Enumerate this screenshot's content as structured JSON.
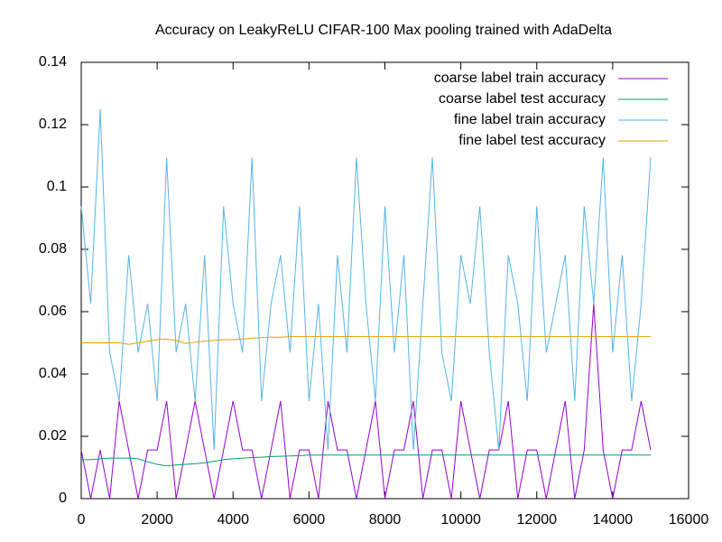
{
  "chart_data": {
    "type": "line",
    "title": "Accuracy on LeakyReLU CIFAR-100 Max pooling trained with AdaDelta",
    "x": [
      0,
      250,
      500,
      750,
      1000,
      1250,
      1500,
      1750,
      2000,
      2250,
      2500,
      2750,
      3000,
      3250,
      3500,
      3750,
      4000,
      4250,
      4500,
      4750,
      5000,
      5250,
      5500,
      5750,
      6000,
      6250,
      6500,
      6750,
      7000,
      7250,
      7500,
      7750,
      8000,
      8250,
      8500,
      8750,
      9000,
      9250,
      9500,
      9750,
      10000,
      10250,
      10500,
      10750,
      11000,
      11250,
      11500,
      11750,
      12000,
      12250,
      12500,
      12750,
      13000,
      13250,
      13500,
      13750,
      14000,
      14250,
      14500,
      14750,
      15000
    ],
    "series": [
      {
        "name": "coarse label train accuracy",
        "color": "#9400d3",
        "values": [
          0.0156,
          0,
          0.0156,
          0,
          0.0313,
          0.0156,
          0,
          0.0156,
          0.0156,
          0.0313,
          0,
          0.0156,
          0.0313,
          0.0156,
          0,
          0.0156,
          0.0313,
          0.0156,
          0.0156,
          0,
          0.0156,
          0.0313,
          0,
          0.0156,
          0.0156,
          0,
          0.0313,
          0.0156,
          0.0156,
          0,
          0.0156,
          0.0313,
          0,
          0.0156,
          0.0156,
          0.0313,
          0,
          0.0156,
          0.0156,
          0,
          0.0313,
          0.0156,
          0,
          0.0156,
          0.0156,
          0.0313,
          0,
          0.0156,
          0.0156,
          0,
          0.0156,
          0.0313,
          0,
          0.0156,
          0.0625,
          0.0156,
          0,
          0.0156,
          0.0156,
          0.0313,
          0.0156
        ]
      },
      {
        "name": "coarse label test accuracy",
        "color": "#009e73",
        "values": [
          0.0125,
          0.0125,
          0.0128,
          0.013,
          0.013,
          0.013,
          0.0128,
          0.0118,
          0.011,
          0.0105,
          0.0108,
          0.011,
          0.0112,
          0.0115,
          0.012,
          0.0125,
          0.0128,
          0.013,
          0.0132,
          0.0133,
          0.0135,
          0.0136,
          0.0137,
          0.0138,
          0.014,
          0.014,
          0.014,
          0.014,
          0.014,
          0.014,
          0.014,
          0.014,
          0.014,
          0.014,
          0.014,
          0.014,
          0.014,
          0.014,
          0.014,
          0.014,
          0.014,
          0.014,
          0.014,
          0.014,
          0.014,
          0.014,
          0.014,
          0.014,
          0.014,
          0.014,
          0.014,
          0.014,
          0.014,
          0.014,
          0.014,
          0.014,
          0.014,
          0.014,
          0.014,
          0.014,
          0.014
        ]
      },
      {
        "name": "fine label train accuracy",
        "color": "#56b4e9",
        "values": [
          0.0938,
          0.0625,
          0.125,
          0.0469,
          0.0313,
          0.0781,
          0.0469,
          0.0625,
          0.0313,
          0.1094,
          0.0469,
          0.0625,
          0.0313,
          0.0781,
          0.0156,
          0.0938,
          0.0625,
          0.0469,
          0.1094,
          0.0313,
          0.0625,
          0.0781,
          0.0469,
          0.0938,
          0.0313,
          0.0625,
          0.0156,
          0.0781,
          0.0469,
          0.1094,
          0.0625,
          0.0313,
          0.0938,
          0.0469,
          0.0781,
          0.0156,
          0.0625,
          0.1094,
          0.0469,
          0.0313,
          0.0781,
          0.0625,
          0.0938,
          0.0469,
          0.0156,
          0.0781,
          0.0625,
          0.0313,
          0.0938,
          0.0469,
          0.0625,
          0.0781,
          0.0313,
          0.0938,
          0.0625,
          0.1094,
          0.0469,
          0.0781,
          0.0313,
          0.0625,
          0.1094
        ]
      },
      {
        "name": "fine label test accuracy",
        "color": "#e69f00",
        "values": [
          0.05,
          0.05,
          0.05,
          0.05,
          0.05,
          0.0495,
          0.05,
          0.0505,
          0.051,
          0.0512,
          0.0508,
          0.0498,
          0.0502,
          0.0505,
          0.0508,
          0.051,
          0.051,
          0.0512,
          0.0515,
          0.0517,
          0.0518,
          0.0518,
          0.052,
          0.052,
          0.052,
          0.052,
          0.052,
          0.052,
          0.052,
          0.052,
          0.052,
          0.052,
          0.052,
          0.052,
          0.052,
          0.052,
          0.052,
          0.052,
          0.052,
          0.052,
          0.052,
          0.052,
          0.052,
          0.052,
          0.052,
          0.052,
          0.052,
          0.052,
          0.052,
          0.052,
          0.052,
          0.052,
          0.052,
          0.052,
          0.052,
          0.052,
          0.052,
          0.052,
          0.052,
          0.052,
          0.052
        ]
      }
    ],
    "xlim": [
      0,
      16000
    ],
    "xticks": [
      0,
      2000,
      4000,
      6000,
      8000,
      10000,
      12000,
      14000,
      16000
    ],
    "ylim": [
      0,
      0.14
    ],
    "yticks": [
      0,
      0.02,
      0.04,
      0.06,
      0.08,
      0.1,
      0.12,
      0.14
    ],
    "legend": "top-right",
    "grid": false
  }
}
